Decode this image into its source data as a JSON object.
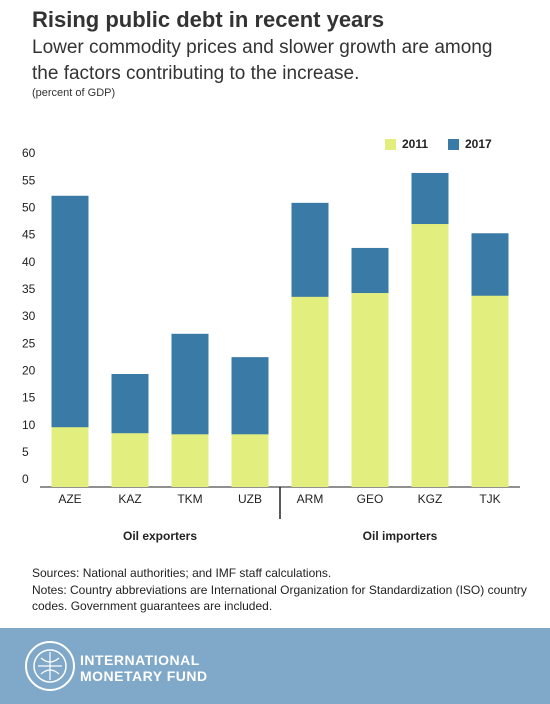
{
  "chart_data": {
    "type": "bar",
    "barmode": "overlay",
    "title": "Rising public debt in recent years",
    "subtitle": "Lower commodity prices and slower growth are among the factors contributing to the increase.",
    "units": "(percent of GDP)",
    "categories": [
      "AZE",
      "KAZ",
      "TKM",
      "UZB",
      "ARM",
      "GEO",
      "KGZ",
      "TJK"
    ],
    "series": [
      {
        "name": "2011",
        "color": "#e2ef7f",
        "values": [
          11.0,
          9.9,
          9.7,
          9.7,
          35.0,
          35.7,
          48.4,
          35.2
        ]
      },
      {
        "name": "2017",
        "color": "#3a7aa6",
        "values": [
          53.6,
          20.8,
          28.2,
          23.9,
          52.3,
          44.0,
          57.8,
          46.7
        ]
      }
    ],
    "groups": [
      {
        "label": "Oil exporters",
        "categories": [
          0,
          3
        ]
      },
      {
        "label": "Oil importers",
        "categories": [
          4,
          7
        ]
      }
    ],
    "ylim": [
      0,
      60
    ],
    "yticks": [
      0,
      5,
      10,
      15,
      20,
      25,
      30,
      35,
      40,
      45,
      50,
      55,
      60
    ],
    "grid": false,
    "legend": "top-right"
  },
  "footnotes": {
    "sources": "Sources: National authorities; and IMF staff calculations.",
    "notes": "Notes: Country abbreviations are International Organization for Standardization (ISO) country codes. Government guarantees are included."
  },
  "footer": {
    "line1": "INTERNATIONAL",
    "line2": "MONETARY FUND"
  }
}
